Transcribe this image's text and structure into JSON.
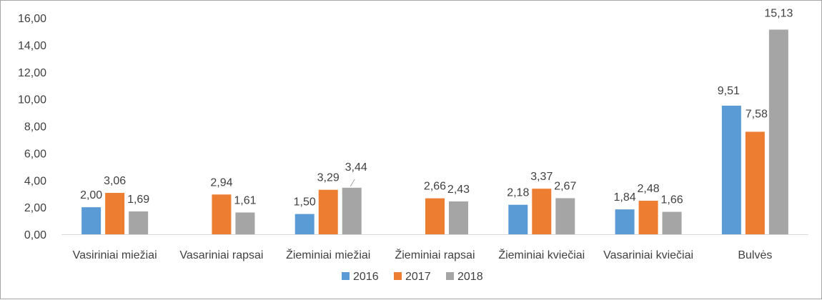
{
  "chart_data": {
    "type": "bar",
    "title": "",
    "xlabel": "",
    "ylabel": "",
    "ylim": [
      0,
      16
    ],
    "y_ticks": [
      "0,00",
      "2,00",
      "4,00",
      "6,00",
      "8,00",
      "10,00",
      "12,00",
      "14,00",
      "16,00"
    ],
    "grid": false,
    "legend_position": "bottom",
    "categories": [
      "Vasiriniai miežiai",
      "Vasariniai rapsai",
      "Žieminiai miežiai",
      "Žieminiai rapsai",
      "Žieminiai kviečiai",
      "Vasariniai kviečiai",
      "Bulvės"
    ],
    "series": [
      {
        "name": "2016",
        "color": "#5b9bd5",
        "values": [
          2.0,
          null,
          1.5,
          null,
          2.18,
          1.84,
          9.51
        ],
        "labels": [
          "2,00",
          "",
          "1,50",
          "",
          "2,18",
          "1,84",
          "9,51"
        ]
      },
      {
        "name": "2017",
        "color": "#ed7d31",
        "values": [
          3.06,
          2.94,
          3.29,
          2.66,
          3.37,
          2.48,
          7.58
        ],
        "labels": [
          "3,06",
          "2,94",
          "3,29",
          "2,66",
          "3,37",
          "2,48",
          "7,58"
        ]
      },
      {
        "name": "2018",
        "color": "#a5a5a5",
        "values": [
          1.69,
          1.61,
          3.44,
          2.43,
          2.67,
          1.66,
          15.13
        ],
        "labels": [
          "1,69",
          "1,61",
          "3,44",
          "2,43",
          "2,67",
          "1,66",
          "15,13"
        ]
      }
    ]
  }
}
